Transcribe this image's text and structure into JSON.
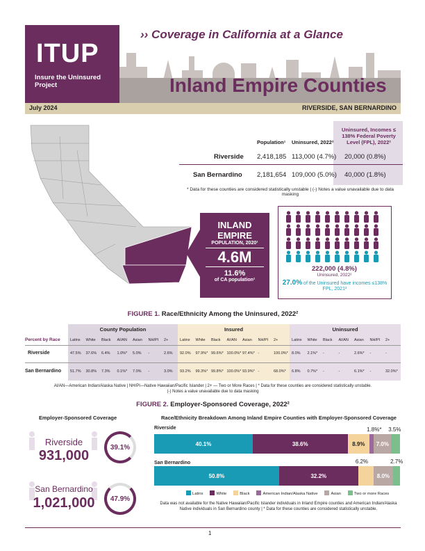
{
  "header": {
    "logo": "ITUP",
    "logo_sub": "Insure the Uninsured Project",
    "tagline": "›› Coverage in California at a Glance",
    "title": "Inland Empire Counties",
    "date": "July 2024",
    "counties": "RIVERSIDE, SAN BERNARDINO"
  },
  "summary_table": {
    "headers": [
      "Population¹",
      "Uninsured, 2022²",
      "Uninsured, Incomes ≤ 138% Federal Poverty Level (FPL), 2022²"
    ],
    "rows": [
      {
        "county": "Riverside",
        "population": "2,418,185",
        "uninsured": "113,000 (4.7%)",
        "low_income": "20,000 (0.8%)"
      },
      {
        "county": "San Bernardino",
        "population": "2,181,654",
        "uninsured": "109,000 (5.0%)",
        "low_income": "40,000 (1.8%)"
      }
    ],
    "note": "* Data for these counties are considered statistically unstable | (-) Notes a value unavailable due to data masking"
  },
  "callout": {
    "line1": "INLAND",
    "line2": "EMPIRE",
    "pop_label": "POPULATION, 2020¹",
    "pop_value": "4.6M",
    "pct": "11.6%",
    "pct_label": "of CA population¹"
  },
  "people_box": {
    "count": "222,000 (4.8%)",
    "count_label": "Uninsured, 2022²",
    "highlight": "27.0%",
    "highlight_label": "of the Uninsured have incomes ≤138% FPL, 2021²",
    "total_icons": 40,
    "teal_from": 30,
    "colors": {
      "purple": "#6b2d5e",
      "teal": "#1a9bb5"
    }
  },
  "figure1": {
    "label": "FIGURE 1.",
    "title": "Race/Ethnicity Among the Uninsured, 2022²",
    "groups": [
      "County Population",
      "Insured",
      "Uninsured"
    ],
    "row_header": "Percent by Race",
    "columns": [
      "Latinx",
      "White",
      "Black",
      "AI/AN",
      "Asian",
      "NH/PI",
      "2+"
    ],
    "rows": [
      {
        "county": "Riverside",
        "pop": [
          "47.5%",
          "37.6%",
          "6.4%",
          "1.0%*",
          "5.0%",
          "-",
          "2.6%"
        ],
        "ins": [
          "92.0%",
          "97.9%*",
          "99.6%*",
          "100.0%*",
          "97.4%*",
          "-",
          "100.0%*"
        ],
        "unins": [
          "8.0%",
          "2.1%*",
          "-",
          "-",
          "2.6%*",
          "-",
          "-"
        ]
      },
      {
        "county": "San Bernardino",
        "pop": [
          "51.7%",
          "30.8%",
          "7.3%",
          "0.1%*",
          "7.0%",
          "-",
          "3.0%"
        ],
        "ins": [
          "93.2%",
          "99.3%*",
          "99.8%*",
          "100.0%*",
          "93.9%*",
          "-",
          "68.0%*"
        ],
        "unins": [
          "6.8%",
          "0.7%*",
          "-",
          "-",
          "6.1%*",
          "-",
          "32.0%*"
        ]
      }
    ],
    "note": "AI/AN—American Indian/Alaska Native | NH/PI—Native Hawaiian/Pacific Islander | 2+ — Two or More Races | * Data for these counties are considered statistically unstable.",
    "note2": "(-) Notes a value unavailable due to data masking"
  },
  "figure2": {
    "label": "FIGURE 2.",
    "title": "Employer-Sponsored Coverage, 2022²",
    "left_title": "Employer-Sponsored Coverage",
    "right_title": "Race/Ethnicity Breakdown Among Inland Empire Counties with Employer-Sponsored Coverage",
    "riverside": {
      "name": "Riverside",
      "count": "931,000",
      "pct": "39.1%"
    },
    "sanbern": {
      "name": "San Bernardino",
      "count": "1,021,000",
      "pct": "47.9%"
    },
    "note": "Data was not available for the Native Hawaiian/Pacific Islander individuals in Inland Empire counties and American Indian/Alaska Native individuals in San Bernardino county | * Data for these counties are considered statistically unstable."
  },
  "chart_data": {
    "type": "bar",
    "stacked": true,
    "orientation": "horizontal",
    "categories": [
      "Riverside",
      "San Bernardino"
    ],
    "series": [
      {
        "name": "Latinx",
        "values": [
          40.1,
          50.8
        ],
        "labels": [
          "40.1%",
          "50.8%"
        ],
        "color": "#1a9bb5"
      },
      {
        "name": "White",
        "values": [
          38.6,
          32.2
        ],
        "labels": [
          "38.6%",
          "32.2%"
        ],
        "color": "#6b2d5e"
      },
      {
        "name": "Black",
        "values": [
          8.9,
          6.2
        ],
        "labels": [
          "8.9%",
          "6.2%"
        ],
        "color": "#f4d49b"
      },
      {
        "name": "American Indian/Alaska Native",
        "values": [
          1.8,
          0
        ],
        "labels": [
          "1.8%*",
          ""
        ],
        "color": "#9b6a9b"
      },
      {
        "name": "Asian",
        "values": [
          7.0,
          8.0
        ],
        "labels": [
          "7.0%",
          "8.0%"
        ],
        "color": "#b9a7a3"
      },
      {
        "name": "Two or more Races",
        "values": [
          3.5,
          2.7
        ],
        "labels": [
          "3.5%",
          "2.7%"
        ],
        "color": "#7cbf8c"
      }
    ]
  },
  "footer": {
    "page": "1"
  }
}
